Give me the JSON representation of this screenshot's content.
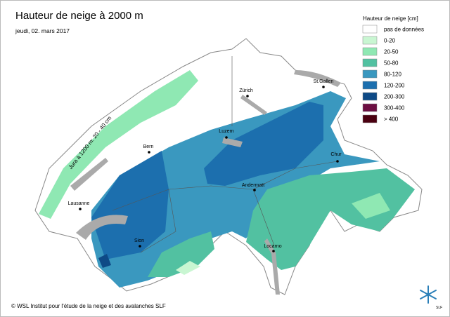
{
  "header": {
    "title": "Hauteur de neige à 2000 m",
    "date": "jeudi, 02. mars 2017"
  },
  "legend": {
    "title": "Hauteur de neige [cm]",
    "items": [
      {
        "label": "pas de données",
        "color": "#ffffff"
      },
      {
        "label": "0-20",
        "color": "#c9f6d2"
      },
      {
        "label": "20-50",
        "color": "#8fe8b3"
      },
      {
        "label": "50-80",
        "color": "#52c1a1"
      },
      {
        "label": "80-120",
        "color": "#3a98bf"
      },
      {
        "label": "120-200",
        "color": "#1c6fae"
      },
      {
        "label": "200-300",
        "color": "#0e4a86"
      },
      {
        "label": "300-400",
        "color": "#6c0f42"
      },
      {
        "label": "> 400",
        "color": "#4a0010"
      }
    ]
  },
  "cities": [
    "Zürich",
    "St.Gallen",
    "Luzern",
    "Bern",
    "Chur",
    "Andermatt",
    "Lausanne",
    "Sion",
    "Locarno"
  ],
  "annotation": "Jura à 1200 m: 20 - 40 cm",
  "footer": {
    "copyright": "© WSL Institut pour l'étude de la neige et des avalanches SLF",
    "logo_text": "SLF"
  }
}
